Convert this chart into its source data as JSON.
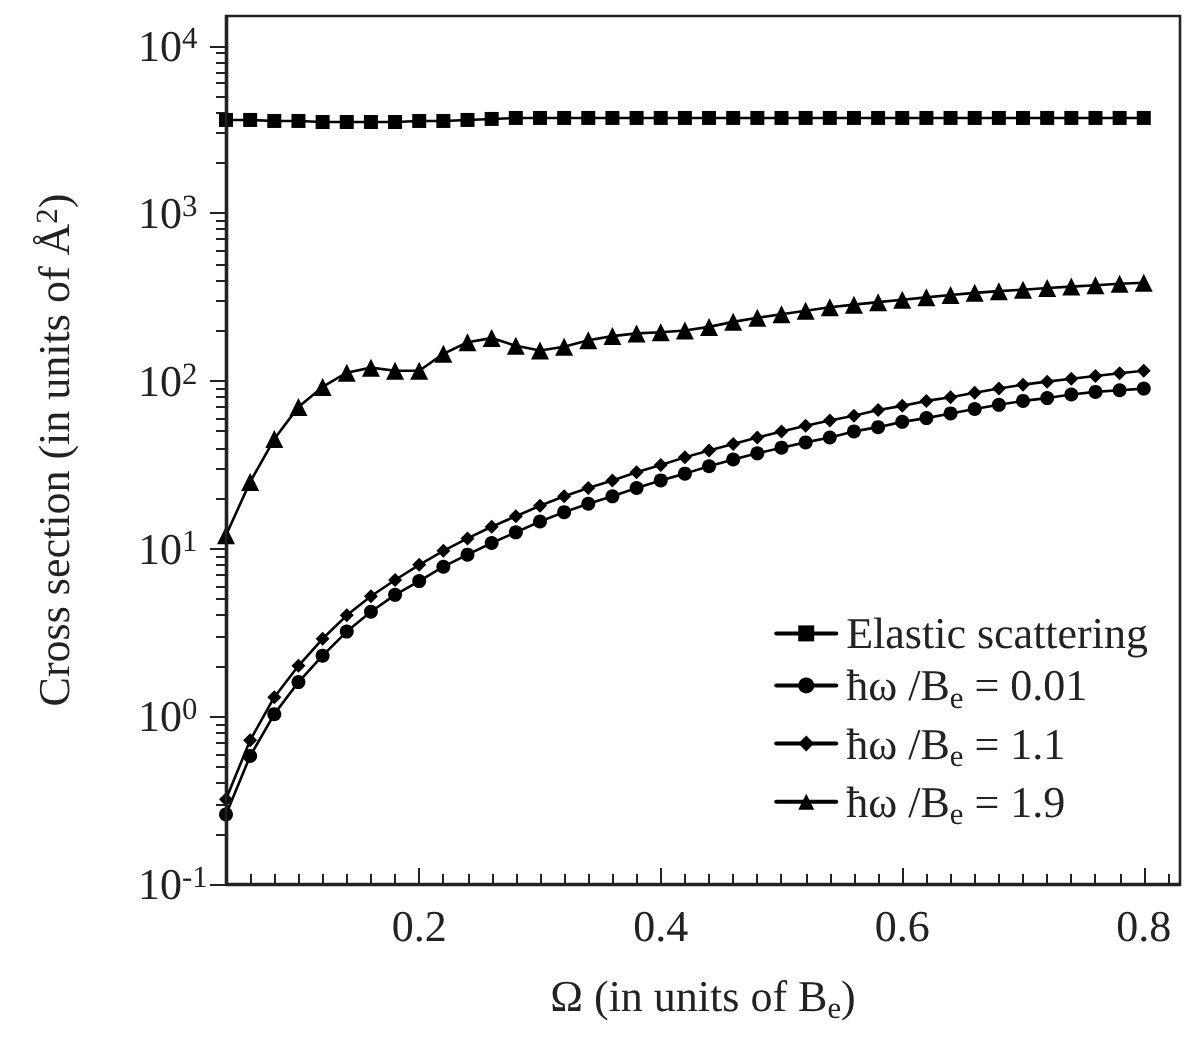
{
  "chart_data": {
    "type": "line",
    "xlabel": "Ω (in units of B$_{e}$)",
    "ylabel": "Cross section (in units of Å$^{2}$)",
    "x": [
      0.04,
      0.06,
      0.08,
      0.1,
      0.12,
      0.14,
      0.16,
      0.18,
      0.2,
      0.22,
      0.24,
      0.26,
      0.28,
      0.3,
      0.32,
      0.34,
      0.36,
      0.38,
      0.4,
      0.42,
      0.44,
      0.46,
      0.48,
      0.5,
      0.52,
      0.54,
      0.56,
      0.58,
      0.6,
      0.62,
      0.64,
      0.66,
      0.68,
      0.7,
      0.72,
      0.74,
      0.76,
      0.78,
      0.8
    ],
    "series": [
      {
        "name": "Elastic scattering",
        "color": "#000000",
        "marker": "square",
        "values": [
          3600,
          3600,
          3550,
          3550,
          3500,
          3500,
          3500,
          3500,
          3550,
          3550,
          3600,
          3650,
          3700,
          3700,
          3700,
          3700,
          3700,
          3700,
          3700,
          3700,
          3700,
          3700,
          3700,
          3700,
          3700,
          3700,
          3700,
          3700,
          3700,
          3700,
          3700,
          3700,
          3700,
          3700,
          3700,
          3700,
          3700,
          3700,
          3700
        ]
      },
      {
        "name": "ħω /B$_{e}$ = 0.01",
        "color": "#000000",
        "marker": "circle",
        "values": [
          0.26,
          0.58,
          1.03,
          1.6,
          2.3,
          3.2,
          4.2,
          5.3,
          6.4,
          7.8,
          9.2,
          10.8,
          12.5,
          14.5,
          16.5,
          18.5,
          20.5,
          23,
          25.5,
          28,
          31,
          34,
          37,
          40,
          43,
          46,
          50,
          53,
          57,
          60,
          64,
          68,
          72,
          76,
          79,
          83,
          86,
          88,
          90
        ]
      },
      {
        "name": "ħω /B$_{e}$ = 1.1",
        "color": "#000000",
        "marker": "diamond",
        "values": [
          0.32,
          0.72,
          1.3,
          2.0,
          2.9,
          4.0,
          5.2,
          6.5,
          8.0,
          9.7,
          11.5,
          13.5,
          15.6,
          18,
          20.5,
          23,
          25.5,
          28.5,
          31.5,
          35,
          38.5,
          42,
          46,
          50,
          54,
          58,
          62,
          67,
          71,
          76,
          80,
          85,
          90,
          95,
          99,
          103,
          107,
          111,
          115
        ]
      },
      {
        "name": "ħω /B$_{e}$ = 1.9",
        "color": "#000000",
        "marker": "triangle",
        "values": [
          12,
          25,
          45,
          70,
          92,
          112,
          120,
          115,
          115,
          145,
          170,
          180,
          162,
          152,
          160,
          175,
          185,
          192,
          195,
          200,
          210,
          225,
          238,
          250,
          262,
          275,
          285,
          295,
          305,
          315,
          325,
          335,
          343,
          350,
          358,
          365,
          372,
          380,
          385
        ]
      }
    ],
    "xlim": [
      0.04,
      0.83
    ],
    "xticks": [
      0.2,
      0.4,
      0.6,
      0.8
    ],
    "log": "y",
    "ylim": [
      0.1,
      15000
    ],
    "yticks": [
      {
        "value": 0.1,
        "label": "10$^{-1}$"
      },
      {
        "value": 1,
        "label": "10$^{0}$"
      },
      {
        "value": 10,
        "label": "10$^{1}$"
      },
      {
        "value": 100,
        "label": "10$^{2}$"
      },
      {
        "value": 1000,
        "label": "10$^{3}$"
      },
      {
        "value": 10000,
        "label": "10$^{4}$"
      }
    ],
    "grid": false,
    "legend": "bottom right",
    "line_style": "solid"
  }
}
